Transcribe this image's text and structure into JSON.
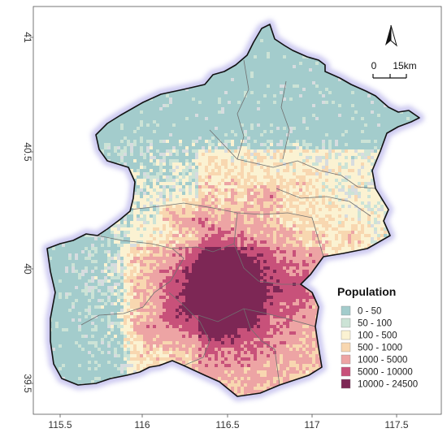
{
  "map": {
    "x_ticks": [
      "115.5",
      "116",
      "116.5",
      "117",
      "117.5"
    ],
    "y_ticks": [
      "39.5",
      "40",
      "40.5",
      "41"
    ]
  },
  "scale_bar": {
    "label_start": "0",
    "label_end": "15km"
  },
  "north_arrow": {
    "icon": "north-arrow-icon"
  },
  "legend": {
    "title": "Population",
    "items": [
      {
        "label": "0 - 50",
        "color": "#a3cccc"
      },
      {
        "label": "50 - 100",
        "color": "#cce3d6"
      },
      {
        "label": "100 - 500",
        "color": "#fbf2d2"
      },
      {
        "label": "500 - 1000",
        "color": "#f8d7b0"
      },
      {
        "label": "1000 - 5000",
        "color": "#eda4a4"
      },
      {
        "label": "5000 - 10000",
        "color": "#c8517a"
      },
      {
        "label": "10000 - 24500",
        "color": "#7d2755"
      }
    ]
  }
}
